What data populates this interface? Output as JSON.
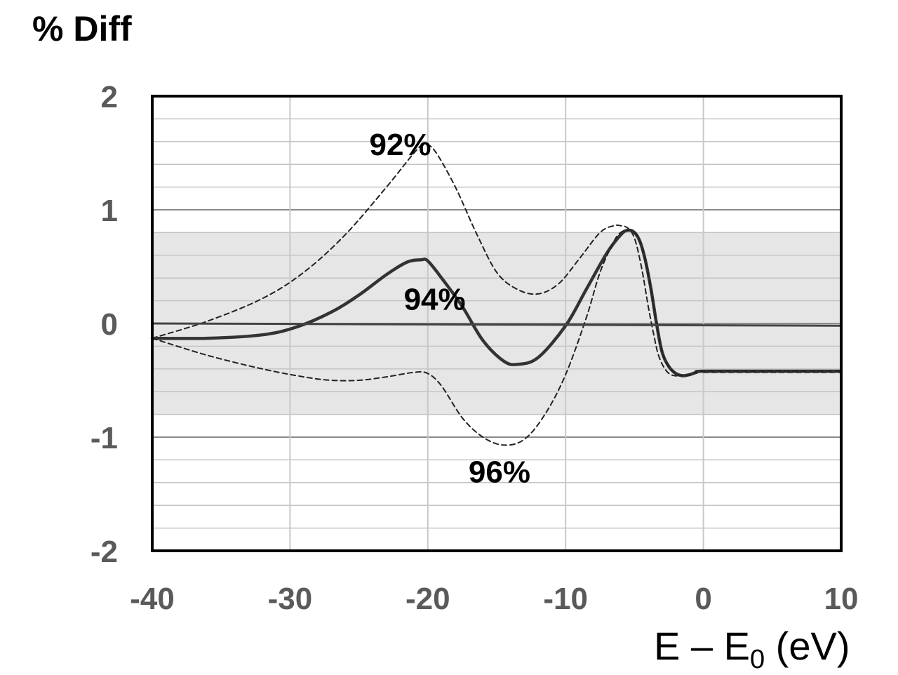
{
  "chart_data": {
    "type": "line",
    "ylabel": "% Diff",
    "xlabel_main": "E – E",
    "xlabel_sub": "0",
    "xlabel_unit": " (eV)",
    "xlim": [
      -40,
      10
    ],
    "ylim": [
      -2,
      2
    ],
    "xticks": [
      -40,
      -30,
      -20,
      -10,
      0,
      10
    ],
    "yticks": [
      2,
      1,
      0,
      -1,
      -2
    ],
    "minor_ystep": 0.2,
    "shaded_band": [
      -0.8,
      0.8
    ],
    "grid": true,
    "series": [
      {
        "name": "92%",
        "style": "dashed",
        "x": [
          -40,
          -36,
          -32,
          -29,
          -26,
          -23,
          -21,
          -20.3,
          -19.5,
          -18,
          -16.5,
          -15,
          -13.5,
          -12,
          -10.5,
          -9,
          -7.5,
          -6.5,
          -6,
          -5.5,
          -5,
          -4.5,
          -4,
          -3.6,
          -3.2,
          -2.5,
          -1.5,
          -0.5,
          0,
          5,
          10
        ],
        "y": [
          -0.13,
          0.02,
          0.22,
          0.45,
          0.78,
          1.2,
          1.5,
          1.57,
          1.52,
          1.2,
          0.8,
          0.45,
          0.3,
          0.26,
          0.35,
          0.57,
          0.8,
          0.86,
          0.86,
          0.84,
          0.75,
          0.5,
          0.15,
          -0.1,
          -0.3,
          -0.44,
          -0.46,
          -0.43,
          -0.43,
          -0.43,
          -0.43
        ]
      },
      {
        "name": "94%",
        "style": "solid",
        "x": [
          -40,
          -36,
          -32,
          -29.5,
          -27,
          -25,
          -23,
          -21.5,
          -20.5,
          -20,
          -19,
          -17.5,
          -16,
          -14.5,
          -13.5,
          -12,
          -10,
          -8.5,
          -7,
          -6,
          -5.5,
          -5,
          -4.6,
          -4.2,
          -3.8,
          -3.4,
          -3,
          -2.5,
          -2,
          -1.5,
          -1,
          -0.5,
          0,
          5,
          10
        ],
        "y": [
          -0.13,
          -0.13,
          -0.1,
          -0.03,
          0.1,
          0.25,
          0.43,
          0.54,
          0.56,
          0.55,
          0.4,
          0.15,
          -0.15,
          -0.33,
          -0.36,
          -0.3,
          -0.02,
          0.3,
          0.62,
          0.78,
          0.82,
          0.8,
          0.72,
          0.55,
          0.3,
          0.0,
          -0.25,
          -0.38,
          -0.44,
          -0.46,
          -0.45,
          -0.43,
          -0.42,
          -0.42,
          -0.42
        ]
      },
      {
        "name": "96%",
        "style": "dashed",
        "x": [
          -40,
          -36,
          -32,
          -29,
          -27,
          -25,
          -23,
          -21,
          -20,
          -19,
          -17.5,
          -16,
          -14.5,
          -13,
          -11.5,
          -10,
          -8.5,
          -7.5,
          -6.5,
          -6,
          -5.5,
          -5,
          -4.6,
          -4.2,
          -3.8,
          -3.4,
          -3,
          -2.5,
          -2,
          -1.5,
          -1,
          -0.5,
          0,
          5,
          10
        ],
        "y": [
          -0.13,
          -0.28,
          -0.4,
          -0.47,
          -0.5,
          -0.5,
          -0.47,
          -0.43,
          -0.44,
          -0.55,
          -0.83,
          -1.0,
          -1.07,
          -1.02,
          -0.8,
          -0.45,
          0.05,
          0.45,
          0.72,
          0.8,
          0.82,
          0.8,
          0.72,
          0.55,
          0.3,
          0.0,
          -0.25,
          -0.38,
          -0.44,
          -0.46,
          -0.45,
          -0.43,
          -0.42,
          -0.42,
          -0.42
        ]
      },
      {
        "name": "",
        "style": "baseline",
        "x": [
          -40,
          10
        ],
        "y": [
          0,
          -0.02
        ]
      }
    ],
    "annotations": [
      {
        "text": "92%",
        "x": -22,
        "y": 1.58
      },
      {
        "text": "94%",
        "x": -19.5,
        "y": 0.22
      },
      {
        "text": "96%",
        "x": -14.8,
        "y": -1.3
      }
    ]
  }
}
